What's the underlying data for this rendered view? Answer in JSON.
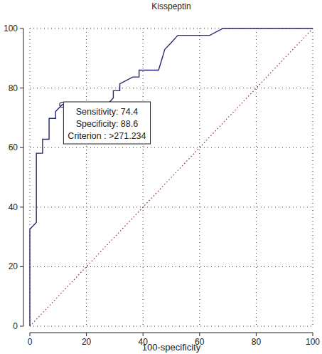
{
  "chart_data": {
    "type": "line",
    "title": "Kisspeptin",
    "x_label": "100-specificity",
    "xlim": [
      0,
      100
    ],
    "ylim": [
      0,
      100
    ],
    "xticks": [
      0,
      20,
      40,
      60,
      80,
      100
    ],
    "yticks": [
      0,
      20,
      40,
      60,
      80,
      100
    ],
    "grid": true,
    "series": [
      {
        "color": "#26266e",
        "line_style": "solid",
        "x": [
          0,
          0,
          2.3,
          2.3,
          4.5,
          4.5,
          6.8,
          6.8,
          9.1,
          9.1,
          11.4,
          13.6,
          27.3,
          29.5,
          29.5,
          31.8,
          31.8,
          36.4,
          38.6,
          38.6,
          45.5,
          47.7,
          50,
          52.3,
          63.6,
          68.2,
          100
        ],
        "values": [
          0,
          32.6,
          34.9,
          58.1,
          58.1,
          62.8,
          62.8,
          69.8,
          69.8,
          72.1,
          74.4,
          74.4,
          74.4,
          76.7,
          79.1,
          79.1,
          81.4,
          83.7,
          83.7,
          86,
          86,
          93,
          95.3,
          97.7,
          97.7,
          100,
          100
        ]
      },
      {
        "color": "#9b2335",
        "line_style": "dotted",
        "x": [
          0,
          100
        ],
        "values": [
          0,
          100
        ]
      }
    ],
    "cutoff_point": {
      "x": 11.4,
      "y": 74.4
    },
    "annotations": [
      "Sensitivity: 74.4",
      "Specificity: 88.6",
      "Criterion : >271.234"
    ]
  }
}
